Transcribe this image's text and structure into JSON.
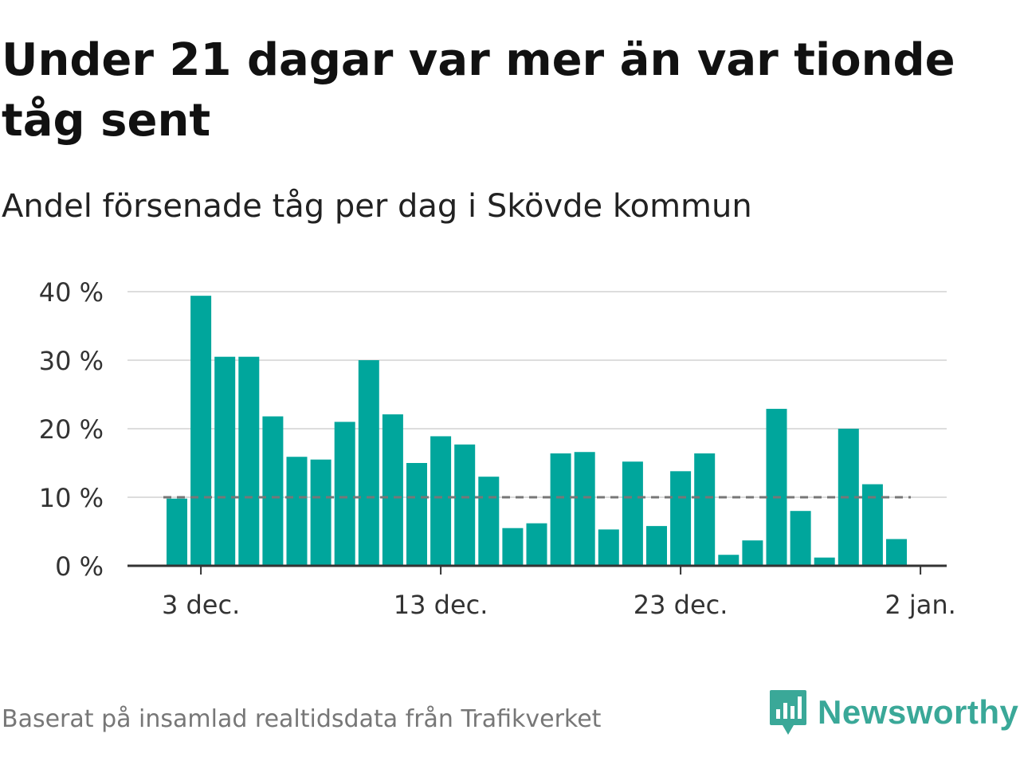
{
  "header": {
    "title": "Under 21 dagar var mer än var tionde tåg sent",
    "subtitle": "Andel försenade tåg per dag i Skövde kommun"
  },
  "footer": {
    "source": "Baserat på insamlad realtidsdata från Trafikverket",
    "brand": "Newsworthy"
  },
  "colors": {
    "bar": "#00a69c",
    "threshold": "#777777",
    "grid": "#dddddd",
    "axis": "#333333",
    "brand": "#3aa898"
  },
  "icons": {
    "brand_logo": "bar-chart-speech-bubble-icon"
  },
  "chart_data": {
    "type": "bar",
    "x": [
      "2 dec.",
      "3 dec.",
      "4 dec.",
      "5 dec.",
      "6 dec.",
      "7 dec.",
      "8 dec.",
      "9 dec.",
      "10 dec.",
      "11 dec.",
      "12 dec.",
      "13 dec.",
      "14 dec.",
      "15 dec.",
      "16 dec.",
      "17 dec.",
      "18 dec.",
      "19 dec.",
      "20 dec.",
      "21 dec.",
      "22 dec.",
      "23 dec.",
      "24 dec.",
      "25 dec.",
      "26 dec.",
      "27 dec.",
      "28 dec.",
      "29 dec.",
      "30 dec.",
      "31 dec.",
      "1 jan."
    ],
    "values": [
      9.8,
      39.4,
      30.5,
      30.5,
      21.8,
      15.9,
      15.5,
      21.0,
      30.0,
      22.1,
      15.0,
      18.9,
      17.7,
      13.0,
      5.5,
      6.2,
      16.4,
      16.6,
      5.3,
      15.2,
      5.8,
      13.8,
      16.4,
      1.6,
      3.7,
      22.9,
      8.0,
      1.2,
      20.0,
      11.9,
      3.9
    ],
    "ylim": [
      0,
      40
    ],
    "yticks": [
      0,
      10,
      20,
      30,
      40
    ],
    "ytick_labels": [
      "0 %",
      "10 %",
      "20 %",
      "30 %",
      "40 %"
    ],
    "xticks": [
      "3 dec.",
      "13 dec.",
      "23 dec.",
      "2 jan."
    ],
    "threshold": 10,
    "grid": true,
    "xlabel": "",
    "ylabel": ""
  }
}
